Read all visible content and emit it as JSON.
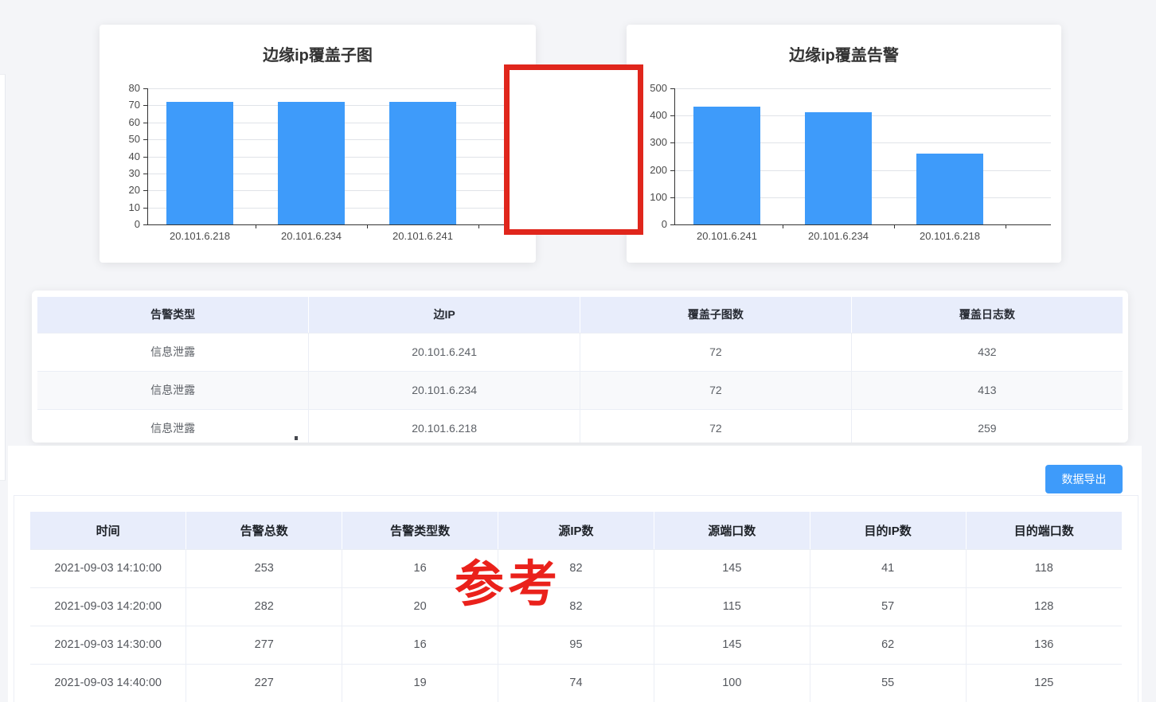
{
  "annotations": {
    "redaction_box_color": "#e0261c",
    "watermark_text": "参考",
    "watermark_color": "#ea211b"
  },
  "chart_data": [
    {
      "type": "bar",
      "title": "边缘ip覆盖子图",
      "categories": [
        "20.101.6.218",
        "20.101.6.234",
        "20.101.6.241"
      ],
      "values": [
        72,
        72,
        72
      ],
      "ylim": [
        0,
        80
      ],
      "ytick_step": 10,
      "xlabel": "",
      "ylabel": "",
      "grid": true,
      "legend": false,
      "bar_color": "#3e9bfa"
    },
    {
      "type": "bar",
      "title": "边缘ip覆盖告警",
      "categories": [
        "20.101.6.241",
        "20.101.6.234",
        "20.101.6.218"
      ],
      "values": [
        432,
        413,
        259
      ],
      "ylim": [
        0,
        500
      ],
      "ytick_step": 100,
      "xlabel": "",
      "ylabel": "",
      "grid": true,
      "legend": false,
      "bar_color": "#3e9bfa"
    }
  ],
  "coverage_table": {
    "headers": [
      "告警类型",
      "边IP",
      "覆盖子图数",
      "覆盖日志数"
    ],
    "rows": [
      [
        "信息泄露",
        "20.101.6.241",
        "72",
        "432"
      ],
      [
        "信息泄露",
        "20.101.6.234",
        "72",
        "413"
      ],
      [
        "信息泄露",
        "20.101.6.218",
        "72",
        "259"
      ]
    ]
  },
  "stats_section": {
    "export_button": "数据导出",
    "table": {
      "headers": [
        "时间",
        "告警总数",
        "告警类型数",
        "源IP数",
        "源端口数",
        "目的IP数",
        "目的端口数"
      ],
      "rows": [
        [
          "2021-09-03 14:10:00",
          "253",
          "16",
          "82",
          "145",
          "41",
          "118"
        ],
        [
          "2021-09-03 14:20:00",
          "282",
          "20",
          "82",
          "115",
          "57",
          "128"
        ],
        [
          "2021-09-03 14:30:00",
          "277",
          "16",
          "95",
          "145",
          "62",
          "136"
        ],
        [
          "2021-09-03 14:40:00",
          "227",
          "19",
          "74",
          "100",
          "55",
          "125"
        ]
      ]
    }
  },
  "colors": {
    "accent_blue": "#3e9bfa",
    "table_header_bg": "#e8edfb",
    "page_bg": "#f4f5f8"
  }
}
